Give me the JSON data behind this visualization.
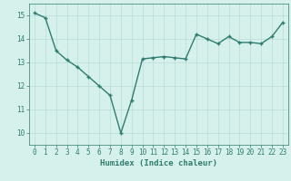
{
  "x": [
    0,
    1,
    2,
    3,
    4,
    5,
    6,
    7,
    8,
    9,
    10,
    11,
    12,
    13,
    14,
    15,
    16,
    17,
    18,
    19,
    20,
    21,
    22,
    23
  ],
  "y": [
    15.1,
    14.9,
    13.5,
    13.1,
    12.8,
    12.4,
    12.0,
    11.6,
    10.0,
    11.4,
    13.15,
    13.2,
    13.25,
    13.2,
    13.15,
    14.2,
    14.0,
    13.8,
    14.1,
    13.85,
    13.85,
    13.8,
    14.1,
    14.7
  ],
  "line_color": "#2e7d6e",
  "marker": "+",
  "bg_color": "#d6f0ec",
  "grid_color": "#b8ddd8",
  "xlabel": "Humidex (Indice chaleur)",
  "ylim": [
    9.5,
    15.5
  ],
  "xlim": [
    -0.5,
    23.5
  ],
  "yticks": [
    10,
    11,
    12,
    13,
    14,
    15
  ],
  "xticks": [
    0,
    1,
    2,
    3,
    4,
    5,
    6,
    7,
    8,
    9,
    10,
    11,
    12,
    13,
    14,
    15,
    16,
    17,
    18,
    19,
    20,
    21,
    22,
    23
  ],
  "tick_fontsize": 5.5,
  "xlabel_fontsize": 6.5,
  "linewidth": 1.0,
  "markersize": 3.5
}
